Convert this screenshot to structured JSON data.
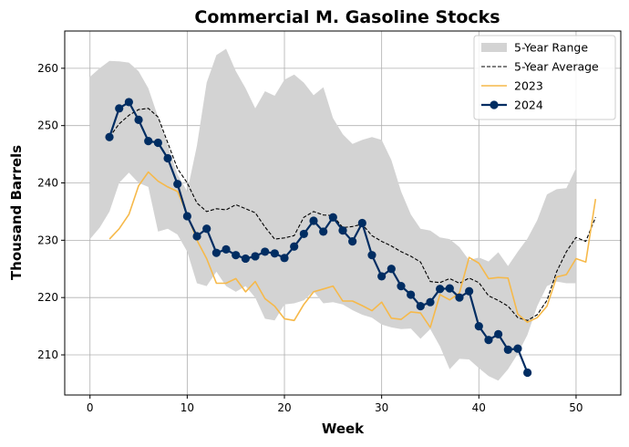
{
  "chart_data": {
    "type": "line",
    "title": "Commercial M. Gasoline Stocks",
    "xlabel": "Week",
    "ylabel": "Thousand Barrels",
    "xlim": [
      -2.6,
      54.6
    ],
    "ylim": [
      203,
      266.5
    ],
    "xticks": [
      0,
      10,
      20,
      30,
      40,
      50
    ],
    "yticks": [
      210,
      220,
      230,
      240,
      250,
      260
    ],
    "grid": true,
    "legend_position": "top-right",
    "range": {
      "name": "5-Year Range",
      "color": "#d3d3d3",
      "x": [
        0,
        1,
        2,
        3,
        4,
        5,
        6,
        7,
        8,
        9,
        10,
        11,
        12,
        13,
        14,
        15,
        16,
        17,
        18,
        19,
        20,
        21,
        22,
        23,
        24,
        25,
        26,
        27,
        28,
        29,
        30,
        31,
        32,
        33,
        34,
        35,
        36,
        37,
        38,
        39,
        40,
        41,
        42,
        43,
        44,
        45,
        46,
        47,
        48,
        49,
        50
      ],
      "upper": [
        258.5,
        260.0,
        261.3,
        261.2,
        261.0,
        259.5,
        256.5,
        251.5,
        246.5,
        241.5,
        238.5,
        246.5,
        257.5,
        262.3,
        263.4,
        259.5,
        256.5,
        253.0,
        256.0,
        255.2,
        258.0,
        258.9,
        257.5,
        255.3,
        256.7,
        251.3,
        248.5,
        246.8,
        247.5,
        248.0,
        247.5,
        244.0,
        238.5,
        234.5,
        232.0,
        231.7,
        230.5,
        230.2,
        228.8,
        226.5,
        227.0,
        226.3,
        227.9,
        225.5,
        228.0,
        230.3,
        233.5,
        238.0,
        238.9,
        239.1,
        242.6
      ],
      "lower": [
        230.2,
        232.2,
        235.0,
        240.0,
        241.8,
        240.0,
        239.3,
        231.5,
        232.0,
        231.0,
        228.0,
        222.5,
        222.0,
        224.5,
        222.0,
        221.0,
        222.0,
        220.0,
        216.3,
        216.0,
        218.8,
        219.0,
        219.5,
        221.1,
        219.0,
        219.2,
        218.8,
        217.8,
        217.0,
        216.5,
        215.3,
        214.8,
        214.5,
        214.6,
        212.8,
        214.5,
        211.5,
        207.5,
        209.3,
        209.2,
        207.7,
        206.3,
        205.5,
        207.5,
        210.2,
        213.5,
        218.5,
        222.0,
        222.8,
        222.5,
        222.5
      ]
    },
    "series": [
      {
        "name": "5-Year Average",
        "color": "#000000",
        "dash": true,
        "x": [
          2,
          3,
          4,
          5,
          6,
          7,
          8,
          9,
          10,
          11,
          12,
          13,
          14,
          15,
          16,
          17,
          18,
          19,
          20,
          21,
          22,
          23,
          24,
          25,
          26,
          27,
          28,
          29,
          30,
          31,
          32,
          33,
          34,
          35,
          36,
          37,
          38,
          39,
          40,
          41,
          42,
          43,
          44,
          45,
          46,
          47,
          48,
          49,
          50,
          51,
          52
        ],
        "values": [
          248.0,
          250.3,
          251.8,
          252.8,
          253.0,
          251.5,
          247.0,
          242.5,
          240.0,
          236.5,
          235.0,
          235.5,
          235.3,
          236.2,
          235.5,
          234.8,
          232.3,
          230.2,
          230.4,
          230.8,
          234.0,
          235.0,
          234.4,
          234.3,
          232.2,
          232.4,
          232.8,
          230.8,
          229.8,
          229.0,
          228.0,
          227.2,
          226.2,
          222.8,
          222.6,
          223.3,
          222.5,
          223.4,
          222.6,
          220.3,
          219.5,
          218.5,
          216.5,
          216.0,
          217.0,
          219.5,
          224.5,
          228.0,
          230.5,
          229.8,
          234.0
        ]
      },
      {
        "name": "2023",
        "color": "#f6b94a",
        "dash": false,
        "x": [
          2,
          3,
          4,
          5,
          6,
          7,
          8,
          9,
          10,
          11,
          12,
          13,
          14,
          15,
          16,
          17,
          18,
          19,
          20,
          21,
          22,
          23,
          24,
          25,
          26,
          27,
          28,
          29,
          30,
          31,
          32,
          33,
          34,
          35,
          36,
          37,
          38,
          39,
          40,
          41,
          42,
          43,
          44,
          45,
          46,
          47,
          48,
          49,
          50,
          51,
          52
        ],
        "values": [
          230.2,
          232.0,
          234.5,
          239.5,
          241.9,
          240.3,
          239.3,
          238.5,
          234.5,
          230.0,
          226.8,
          222.5,
          222.5,
          223.3,
          221.0,
          222.8,
          219.8,
          218.5,
          216.3,
          216.0,
          218.8,
          221.0,
          221.5,
          222.0,
          219.4,
          219.4,
          218.6,
          217.7,
          219.2,
          216.4,
          216.2,
          217.5,
          217.3,
          214.8,
          220.5,
          219.6,
          220.8,
          227.0,
          226.0,
          223.3,
          223.5,
          223.4,
          217.1,
          215.7,
          216.5,
          218.5,
          223.6,
          224.0,
          226.8,
          226.2,
          237.2
        ]
      },
      {
        "name": "2024",
        "color": "#002d62",
        "dash": false,
        "markers": true,
        "x": [
          2,
          3,
          4,
          5,
          6,
          7,
          8,
          9,
          10,
          11,
          12,
          13,
          14,
          15,
          16,
          17,
          18,
          19,
          20,
          21,
          22,
          23,
          24,
          25,
          26,
          27,
          28,
          29,
          30,
          31,
          32,
          33,
          34,
          35,
          36,
          37,
          38,
          39,
          40,
          41,
          42,
          43,
          44,
          45
        ],
        "values": [
          248.0,
          253.0,
          254.1,
          251.0,
          247.3,
          247.0,
          244.3,
          239.8,
          234.2,
          230.7,
          232.0,
          227.8,
          228.4,
          227.4,
          226.8,
          227.2,
          228.0,
          227.7,
          226.9,
          228.9,
          231.1,
          233.4,
          231.5,
          234.0,
          231.7,
          229.8,
          233.0,
          227.4,
          223.7,
          225.0,
          222.0,
          220.5,
          218.5,
          219.2,
          221.5,
          221.6,
          220.0,
          221.1,
          215.0,
          212.6,
          213.6,
          210.9,
          211.1,
          206.9
        ]
      }
    ]
  }
}
